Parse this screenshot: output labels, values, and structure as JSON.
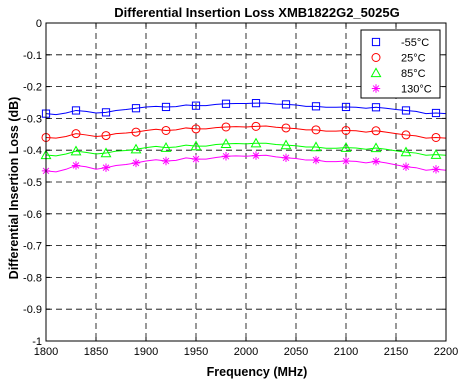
{
  "chart_data": {
    "type": "line",
    "title": "Differential Insertion Loss XMB1822G2_5025G",
    "xlabel": "Frequency (MHz)",
    "ylabel": "Differential Insertion Loss (dB)",
    "xlim": [
      1800,
      2200
    ],
    "ylim": [
      -1,
      0
    ],
    "xticks": [
      1800,
      1850,
      1900,
      1950,
      2000,
      2050,
      2100,
      2150,
      2200
    ],
    "yticks": [
      0,
      -0.1,
      -0.2,
      -0.3,
      -0.4,
      -0.5,
      -0.6,
      -0.7,
      -0.8,
      -0.9,
      -1
    ],
    "xtick_labels": [
      "1800",
      "1850",
      "1900",
      "1950",
      "2000",
      "2050",
      "2100",
      "2150",
      "2200"
    ],
    "ytick_labels": [
      "0",
      "-0.1",
      "-0.2",
      "-0.3",
      "-0.4",
      "-0.5",
      "-0.6",
      "-0.7",
      "-0.8",
      "-0.9",
      "-1"
    ],
    "grid": true,
    "grid_style": "dashed",
    "legend_position": "top-right",
    "x": [
      1800,
      1810,
      1820,
      1830,
      1840,
      1850,
      1860,
      1870,
      1880,
      1890,
      1900,
      1910,
      1920,
      1930,
      1940,
      1950,
      1960,
      1970,
      1980,
      1990,
      2000,
      2010,
      2020,
      2030,
      2040,
      2050,
      2060,
      2070,
      2080,
      2090,
      2100,
      2110,
      2120,
      2130,
      2140,
      2150,
      2160,
      2170,
      2180,
      2190,
      2200
    ],
    "series": [
      {
        "name": "-55°C",
        "color": "#0000ff",
        "marker": "square",
        "marker_x": [
          1800,
          1830,
          1860,
          1890,
          1920,
          1950,
          1980,
          2010,
          2040,
          2070,
          2100,
          2130,
          2160,
          2190
        ],
        "values": [
          -0.285,
          -0.288,
          -0.283,
          -0.275,
          -0.278,
          -0.283,
          -0.281,
          -0.275,
          -0.272,
          -0.268,
          -0.264,
          -0.262,
          -0.264,
          -0.263,
          -0.258,
          -0.26,
          -0.26,
          -0.256,
          -0.254,
          -0.253,
          -0.253,
          -0.252,
          -0.252,
          -0.255,
          -0.256,
          -0.258,
          -0.262,
          -0.262,
          -0.265,
          -0.265,
          -0.264,
          -0.265,
          -0.268,
          -0.265,
          -0.268,
          -0.272,
          -0.275,
          -0.278,
          -0.285,
          -0.283,
          -0.285
        ]
      },
      {
        "name": "25°C",
        "color": "#ff0000",
        "marker": "circle",
        "marker_x": [
          1800,
          1830,
          1860,
          1890,
          1920,
          1950,
          1980,
          2010,
          2040,
          2070,
          2100,
          2130,
          2160,
          2190
        ],
        "values": [
          -0.36,
          -0.362,
          -0.357,
          -0.348,
          -0.352,
          -0.357,
          -0.354,
          -0.348,
          -0.346,
          -0.343,
          -0.338,
          -0.334,
          -0.338,
          -0.336,
          -0.33,
          -0.333,
          -0.333,
          -0.329,
          -0.327,
          -0.326,
          -0.327,
          -0.325,
          -0.324,
          -0.328,
          -0.33,
          -0.332,
          -0.336,
          -0.336,
          -0.34,
          -0.34,
          -0.338,
          -0.339,
          -0.343,
          -0.339,
          -0.343,
          -0.348,
          -0.352,
          -0.355,
          -0.362,
          -0.36,
          -0.362
        ]
      },
      {
        "name": "85°C",
        "color": "#00ff00",
        "marker": "triangle",
        "marker_x": [
          1800,
          1830,
          1860,
          1890,
          1920,
          1950,
          1980,
          2010,
          2040,
          2070,
          2100,
          2130,
          2160,
          2190
        ],
        "values": [
          -0.415,
          -0.418,
          -0.412,
          -0.403,
          -0.407,
          -0.412,
          -0.409,
          -0.403,
          -0.401,
          -0.397,
          -0.392,
          -0.388,
          -0.392,
          -0.39,
          -0.384,
          -0.387,
          -0.387,
          -0.382,
          -0.38,
          -0.379,
          -0.38,
          -0.378,
          -0.378,
          -0.382,
          -0.384,
          -0.386,
          -0.39,
          -0.39,
          -0.394,
          -0.394,
          -0.392,
          -0.393,
          -0.397,
          -0.393,
          -0.397,
          -0.402,
          -0.406,
          -0.409,
          -0.416,
          -0.414,
          -0.416
        ]
      },
      {
        "name": "130°C",
        "color": "#ff00ff",
        "marker": "asterisk",
        "marker_x": [
          1800,
          1830,
          1860,
          1890,
          1920,
          1950,
          1980,
          2010,
          2040,
          2070,
          2100,
          2130,
          2160,
          2190
        ],
        "values": [
          -0.465,
          -0.468,
          -0.46,
          -0.448,
          -0.452,
          -0.46,
          -0.455,
          -0.448,
          -0.445,
          -0.44,
          -0.434,
          -0.43,
          -0.434,
          -0.432,
          -0.424,
          -0.428,
          -0.428,
          -0.423,
          -0.419,
          -0.418,
          -0.419,
          -0.417,
          -0.416,
          -0.421,
          -0.424,
          -0.426,
          -0.431,
          -0.431,
          -0.436,
          -0.436,
          -0.434,
          -0.435,
          -0.44,
          -0.435,
          -0.44,
          -0.446,
          -0.452,
          -0.455,
          -0.463,
          -0.46,
          -0.463
        ]
      }
    ]
  }
}
